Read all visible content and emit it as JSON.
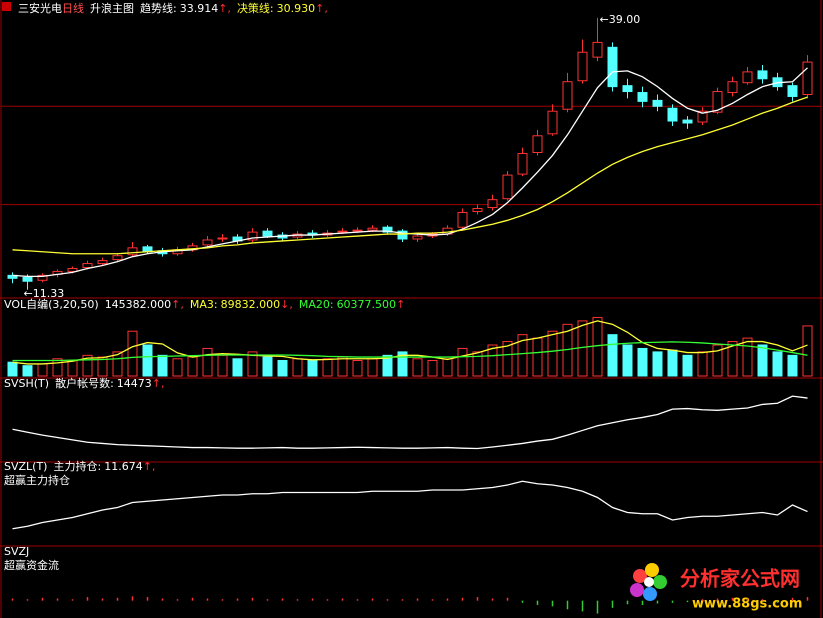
{
  "header": {
    "stock": "三安光电",
    "period": "日线",
    "indicator": "升浪主图"
  },
  "watermark": {
    "name": "分析家公式网",
    "url": "www.88gs.com"
  },
  "chart_data": [
    {
      "type": "candlestick",
      "up_color": "#ff3232",
      "down_color": "#54ffff",
      "ylim": [
        10.7,
        40
      ],
      "ygrid": [
        20,
        30
      ],
      "low_label": "←11.33",
      "high_label": "←39.00",
      "open": [
        12.8,
        12.6,
        12.3,
        12.9,
        13.2,
        13.6,
        14.0,
        14.4,
        14.9,
        15.7,
        15.3,
        15.0,
        15.4,
        15.9,
        16.5,
        16.7,
        16.4,
        17.3,
        16.9,
        16.7,
        17.1,
        16.9,
        17.2,
        17.3,
        17.4,
        17.7,
        17.3,
        16.5,
        16.8,
        17.0,
        17.7,
        19.3,
        19.7,
        20.6,
        23.1,
        25.3,
        27.2,
        29.7,
        32.6,
        35.0,
        36.0,
        32.1,
        31.4,
        30.6,
        29.8,
        28.6,
        28.4,
        29.4,
        31.4,
        32.4,
        33.6,
        32.9,
        32.1,
        31.2
      ],
      "high": [
        13.1,
        12.9,
        13.0,
        13.4,
        13.7,
        14.3,
        14.6,
        15.0,
        16.2,
        15.9,
        15.6,
        15.7,
        16.1,
        16.8,
        17.0,
        17.0,
        17.6,
        17.6,
        17.2,
        17.3,
        17.4,
        17.4,
        17.6,
        17.7,
        17.9,
        17.9,
        17.5,
        17.0,
        17.2,
        17.9,
        19.6,
        20.0,
        21.0,
        23.4,
        25.8,
        27.6,
        30.2,
        33.4,
        36.8,
        39.0,
        36.5,
        32.8,
        32.0,
        31.2,
        30.2,
        29.0,
        29.9,
        31.9,
        33.0,
        34.0,
        34.2,
        33.4,
        32.4,
        35.2
      ],
      "low": [
        12.0,
        11.33,
        12.1,
        12.6,
        13.0,
        13.4,
        13.8,
        14.2,
        14.7,
        15.0,
        14.7,
        14.8,
        15.2,
        15.7,
        16.2,
        16.0,
        16.2,
        16.6,
        16.3,
        16.5,
        16.6,
        16.7,
        17.0,
        17.1,
        17.2,
        17.0,
        16.2,
        16.2,
        16.6,
        16.8,
        17.5,
        19.0,
        19.4,
        20.4,
        22.9,
        25.0,
        27.0,
        29.4,
        32.3,
        34.6,
        31.5,
        30.8,
        29.9,
        29.5,
        28.0,
        27.7,
        28.1,
        29.2,
        31.0,
        32.2,
        32.3,
        31.6,
        30.5,
        30.8
      ],
      "close": [
        12.5,
        12.2,
        12.8,
        13.2,
        13.5,
        14.0,
        14.3,
        14.8,
        15.6,
        15.2,
        15.0,
        15.4,
        15.8,
        16.4,
        16.6,
        16.3,
        17.2,
        16.8,
        16.6,
        17.0,
        16.9,
        17.1,
        17.3,
        17.4,
        17.6,
        17.2,
        16.5,
        16.8,
        17.0,
        17.6,
        19.2,
        19.6,
        20.5,
        23.0,
        25.2,
        27.0,
        29.5,
        32.5,
        35.5,
        36.5,
        32.0,
        31.5,
        30.5,
        30.0,
        28.5,
        28.3,
        29.5,
        31.5,
        32.5,
        33.5,
        32.8,
        32.0,
        31.0,
        34.5
      ],
      "series": [
        {
          "name": "趋势线:",
          "color": "#ffffff",
          "suffix": "↑,",
          "values": [
            12.8,
            12.7,
            12.7,
            12.9,
            13.1,
            13.5,
            13.8,
            14.2,
            14.7,
            15.0,
            15.2,
            15.3,
            15.4,
            15.7,
            16.0,
            16.3,
            16.6,
            16.7,
            16.8,
            16.9,
            16.9,
            17.0,
            17.1,
            17.2,
            17.3,
            17.3,
            17.1,
            17.0,
            16.9,
            17.0,
            17.5,
            18.2,
            19.0,
            20.2,
            21.7,
            23.3,
            25.0,
            27.1,
            29.5,
            31.9,
            33.5,
            33.6,
            33.0,
            32.0,
            30.8,
            29.8,
            29.3,
            29.6,
            30.3,
            31.2,
            32.0,
            32.4,
            32.5,
            33.914
          ]
        },
        {
          "name": "决策线:",
          "color": "#ffff33",
          "suffix": "↑,",
          "last_label": "30.930",
          "values": [
            15.4,
            15.3,
            15.2,
            15.1,
            15.0,
            15.0,
            15.0,
            15.0,
            15.1,
            15.2,
            15.3,
            15.4,
            15.5,
            15.6,
            15.8,
            15.9,
            16.1,
            16.2,
            16.3,
            16.4,
            16.5,
            16.6,
            16.7,
            16.8,
            16.9,
            17.0,
            17.0,
            17.1,
            17.1,
            17.2,
            17.4,
            17.7,
            18.0,
            18.4,
            18.9,
            19.5,
            20.3,
            21.2,
            22.2,
            23.2,
            24.1,
            24.8,
            25.4,
            25.9,
            26.3,
            26.7,
            27.1,
            27.6,
            28.1,
            28.7,
            29.3,
            29.8,
            30.4,
            30.93
          ]
        }
      ]
    },
    {
      "type": "volume",
      "title": "VOL自编(3,20,50)",
      "ylim": [
        0,
        180000
      ],
      "suffix": "↑,",
      "last_label": "145382.000",
      "values": [
        40000,
        30000,
        35000,
        50000,
        45000,
        60000,
        55000,
        70000,
        130000,
        90000,
        60000,
        50000,
        55000,
        80000,
        60000,
        50000,
        70000,
        55000,
        45000,
        50000,
        45000,
        50000,
        55000,
        45000,
        50000,
        60000,
        70000,
        50000,
        45000,
        50000,
        80000,
        70000,
        90000,
        100000,
        120000,
        110000,
        130000,
        150000,
        160000,
        170000,
        120000,
        90000,
        80000,
        70000,
        75000,
        60000,
        70000,
        90000,
        100000,
        110000,
        90000,
        70000,
        60000,
        145382
      ],
      "series": [
        {
          "name": "MA3:",
          "color": "#ffff33",
          "suffix": "↓,",
          "last_label": "89832.000",
          "values": [
            40000,
            35000,
            35000,
            38000,
            43000,
            52000,
            53000,
            62000,
            85000,
            97000,
            93000,
            67000,
            55000,
            62000,
            65000,
            63000,
            60000,
            58000,
            57000,
            50000,
            47000,
            48000,
            50000,
            50000,
            50000,
            52000,
            60000,
            60000,
            55000,
            48000,
            58000,
            67000,
            80000,
            87000,
            103000,
            110000,
            120000,
            130000,
            147000,
            160000,
            150000,
            127000,
            97000,
            80000,
            75000,
            68000,
            68000,
            73000,
            87000,
            100000,
            100000,
            90000,
            73000,
            89832
          ]
        },
        {
          "name": "MA20:",
          "color": "#33ff33",
          "suffix": "↑",
          "last_label": "60377.500",
          "values": [
            45000,
            45000,
            45000,
            45000,
            46000,
            47000,
            48000,
            50000,
            54000,
            56000,
            57000,
            58000,
            59000,
            60000,
            61000,
            61000,
            61000,
            61000,
            61000,
            60000,
            59000,
            57000,
            56000,
            55000,
            55000,
            55000,
            55000,
            55000,
            55000,
            55000,
            56000,
            57000,
            59000,
            62000,
            65000,
            68000,
            72000,
            77000,
            83000,
            88000,
            92000,
            95000,
            97000,
            98000,
            99000,
            98000,
            96000,
            93000,
            90000,
            87000,
            82000,
            75000,
            68000,
            60377.5
          ]
        }
      ]
    },
    {
      "type": "line",
      "title": "SVSH(T)",
      "ylim": [
        4000,
        15500
      ],
      "series": [
        {
          "name": "散户帐号数:",
          "color": "#ffffff",
          "suffix": "↑,",
          "values": [
            9200,
            8700,
            8200,
            7800,
            7400,
            7000,
            6800,
            6600,
            6500,
            6400,
            6300,
            6200,
            6100,
            6100,
            6050,
            6000,
            6000,
            6050,
            6100,
            6000,
            6000,
            6050,
            6100,
            6150,
            6100,
            6050,
            6000,
            6000,
            6050,
            6100,
            6000,
            5950,
            6200,
            6500,
            6800,
            7200,
            7500,
            8200,
            9000,
            9800,
            10300,
            10800,
            11200,
            11700,
            12600,
            12700,
            12500,
            12400,
            12600,
            12800,
            13400,
            13600,
            14800,
            14473
          ]
        }
      ]
    },
    {
      "type": "line",
      "title": "SVZL(T)",
      "subtitle": "超赢主力持仓",
      "ylim": [
        9,
        15
      ],
      "series": [
        {
          "name": "主力持仓:",
          "color": "#ffffff",
          "suffix": "↑,",
          "values": [
            10.3,
            10.5,
            10.8,
            11.0,
            11.2,
            11.5,
            11.8,
            12.0,
            12.4,
            12.5,
            12.6,
            12.7,
            12.8,
            12.9,
            13.0,
            13.0,
            13.1,
            13.1,
            13.2,
            13.2,
            13.2,
            13.2,
            13.2,
            13.2,
            13.3,
            13.3,
            13.3,
            13.3,
            13.4,
            13.4,
            13.4,
            13.5,
            13.6,
            13.8,
            14.1,
            13.9,
            13.8,
            13.6,
            13.3,
            12.8,
            12.0,
            11.6,
            11.5,
            11.5,
            11.0,
            11.2,
            11.3,
            11.3,
            11.4,
            11.5,
            11.6,
            11.4,
            12.2,
            11.674
          ]
        }
      ]
    },
    {
      "type": "bar",
      "title": "SVZJ",
      "subtitle": "超赢资金流",
      "ylim": [
        -20,
        40
      ],
      "up_color": "#ff3232",
      "down_color": "#33cc33",
      "values": [
        3,
        2,
        4,
        3,
        2,
        5,
        3,
        4,
        6,
        5,
        3,
        2,
        4,
        3,
        2,
        3,
        4,
        2,
        3,
        2,
        3,
        2,
        3,
        2,
        3,
        2,
        2,
        3,
        2,
        3,
        4,
        5,
        3,
        4,
        -3,
        -6,
        -8,
        -12,
        -15,
        -18,
        -10,
        -5,
        -6,
        -4,
        -3,
        -2,
        2,
        3,
        4,
        3,
        2,
        -3,
        4,
        5
      ]
    }
  ]
}
